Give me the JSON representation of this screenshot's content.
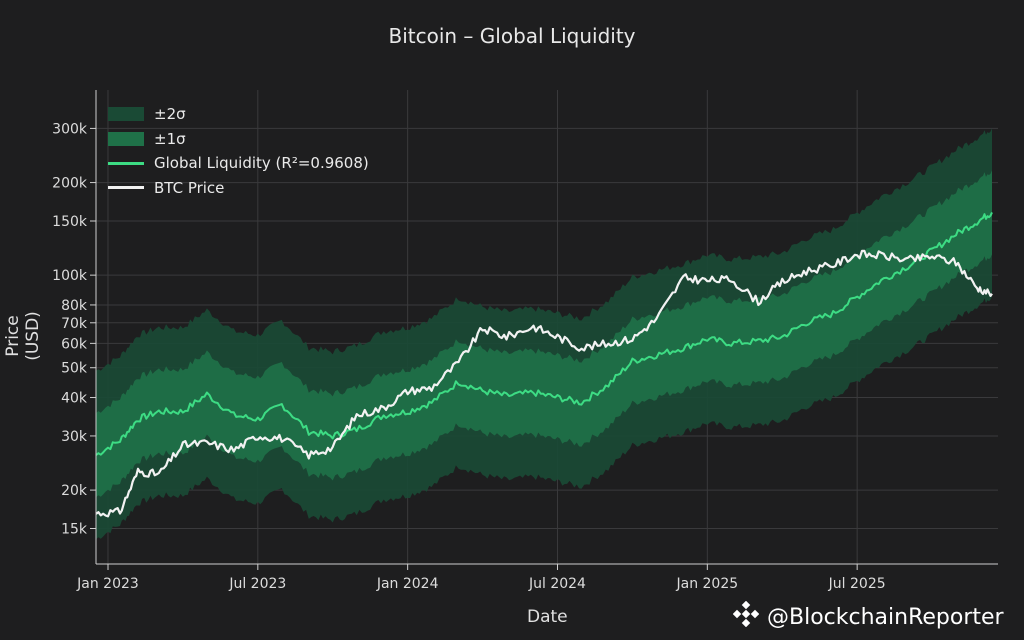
{
  "chart_data": {
    "type": "line",
    "title": "Bitcoin – Global Liquidity",
    "xlabel": "Date",
    "ylabel": "Price (USD)",
    "yscale": "log",
    "ylim": [
      11500,
      400000
    ],
    "xlim": [
      2022.96,
      2025.97
    ],
    "x_ticks": [
      {
        "value": 2023.0,
        "label": "Jan 2023"
      },
      {
        "value": 2023.5,
        "label": "Jul 2023"
      },
      {
        "value": 2024.0,
        "label": "Jan 2024"
      },
      {
        "value": 2024.5,
        "label": "Jul 2024"
      },
      {
        "value": 2025.0,
        "label": "Jan 2025"
      },
      {
        "value": 2025.5,
        "label": "Jul 2025"
      }
    ],
    "y_ticks": [
      {
        "value": 15000,
        "label": "15k"
      },
      {
        "value": 20000,
        "label": "20k"
      },
      {
        "value": 30000,
        "label": "30k"
      },
      {
        "value": 40000,
        "label": "40k"
      },
      {
        "value": 50000,
        "label": "50k"
      },
      {
        "value": 60000,
        "label": "60k"
      },
      {
        "value": 70000,
        "label": "70k"
      },
      {
        "value": 80000,
        "label": "80k"
      },
      {
        "value": 100000,
        "label": "100k"
      },
      {
        "value": 150000,
        "label": "150k"
      },
      {
        "value": 200000,
        "label": "200k"
      },
      {
        "value": 300000,
        "label": "300k"
      }
    ],
    "legend": {
      "position": "top-left",
      "entries": [
        "±2σ",
        "±1σ",
        "Global Liquidity (R²=0.9608)",
        "BTC Price"
      ]
    },
    "sigma_multiplier": 1.37,
    "x": [
      2022.96,
      2023.04,
      2023.1,
      2023.17,
      2023.25,
      2023.33,
      2023.42,
      2023.5,
      2023.58,
      2023.67,
      2023.75,
      2023.83,
      2023.92,
      2024.0,
      2024.08,
      2024.17,
      2024.25,
      2024.33,
      2024.42,
      2024.5,
      2024.58,
      2024.67,
      2024.75,
      2024.83,
      2024.92,
      2025.0,
      2025.08,
      2025.17,
      2025.25,
      2025.33,
      2025.42,
      2025.5,
      2025.58,
      2025.67,
      2025.75,
      2025.83,
      2025.9,
      2025.95
    ],
    "series": [
      {
        "name": "Global Liquidity (R²=0.9608)",
        "color": "#3ddc84",
        "values": [
          26000,
          29000,
          34000,
          36000,
          36000,
          41000,
          35000,
          34000,
          38000,
          31000,
          30000,
          31500,
          35000,
          36000,
          38500,
          45000,
          42000,
          40500,
          41500,
          40000,
          38500,
          44000,
          52500,
          55000,
          58000,
          62000,
          60000,
          61000,
          63000,
          70000,
          75000,
          85000,
          96000,
          107000,
          120000,
          136000,
          149000,
          160000
        ]
      },
      {
        "name": "BTC Price",
        "color": "#f2f2f2",
        "values": [
          16800,
          17000,
          23000,
          22500,
          28000,
          28500,
          27000,
          30000,
          29500,
          26000,
          27500,
          35000,
          37000,
          42000,
          43000,
          52000,
          67000,
          63000,
          68000,
          63000,
          58000,
          60000,
          62000,
          72000,
          98000,
          96000,
          97000,
          82000,
          95000,
          103000,
          108000,
          117000,
          116000,
          112000,
          115000,
          110000,
          91000,
          87000
        ]
      }
    ],
    "bands": [
      {
        "name": "±2σ",
        "color": "#1a4a35"
      },
      {
        "name": "±1σ",
        "color": "#1f7148"
      }
    ]
  },
  "watermark": {
    "icon": "binance-diamond-icon",
    "text": "@BlockchainReporter"
  }
}
